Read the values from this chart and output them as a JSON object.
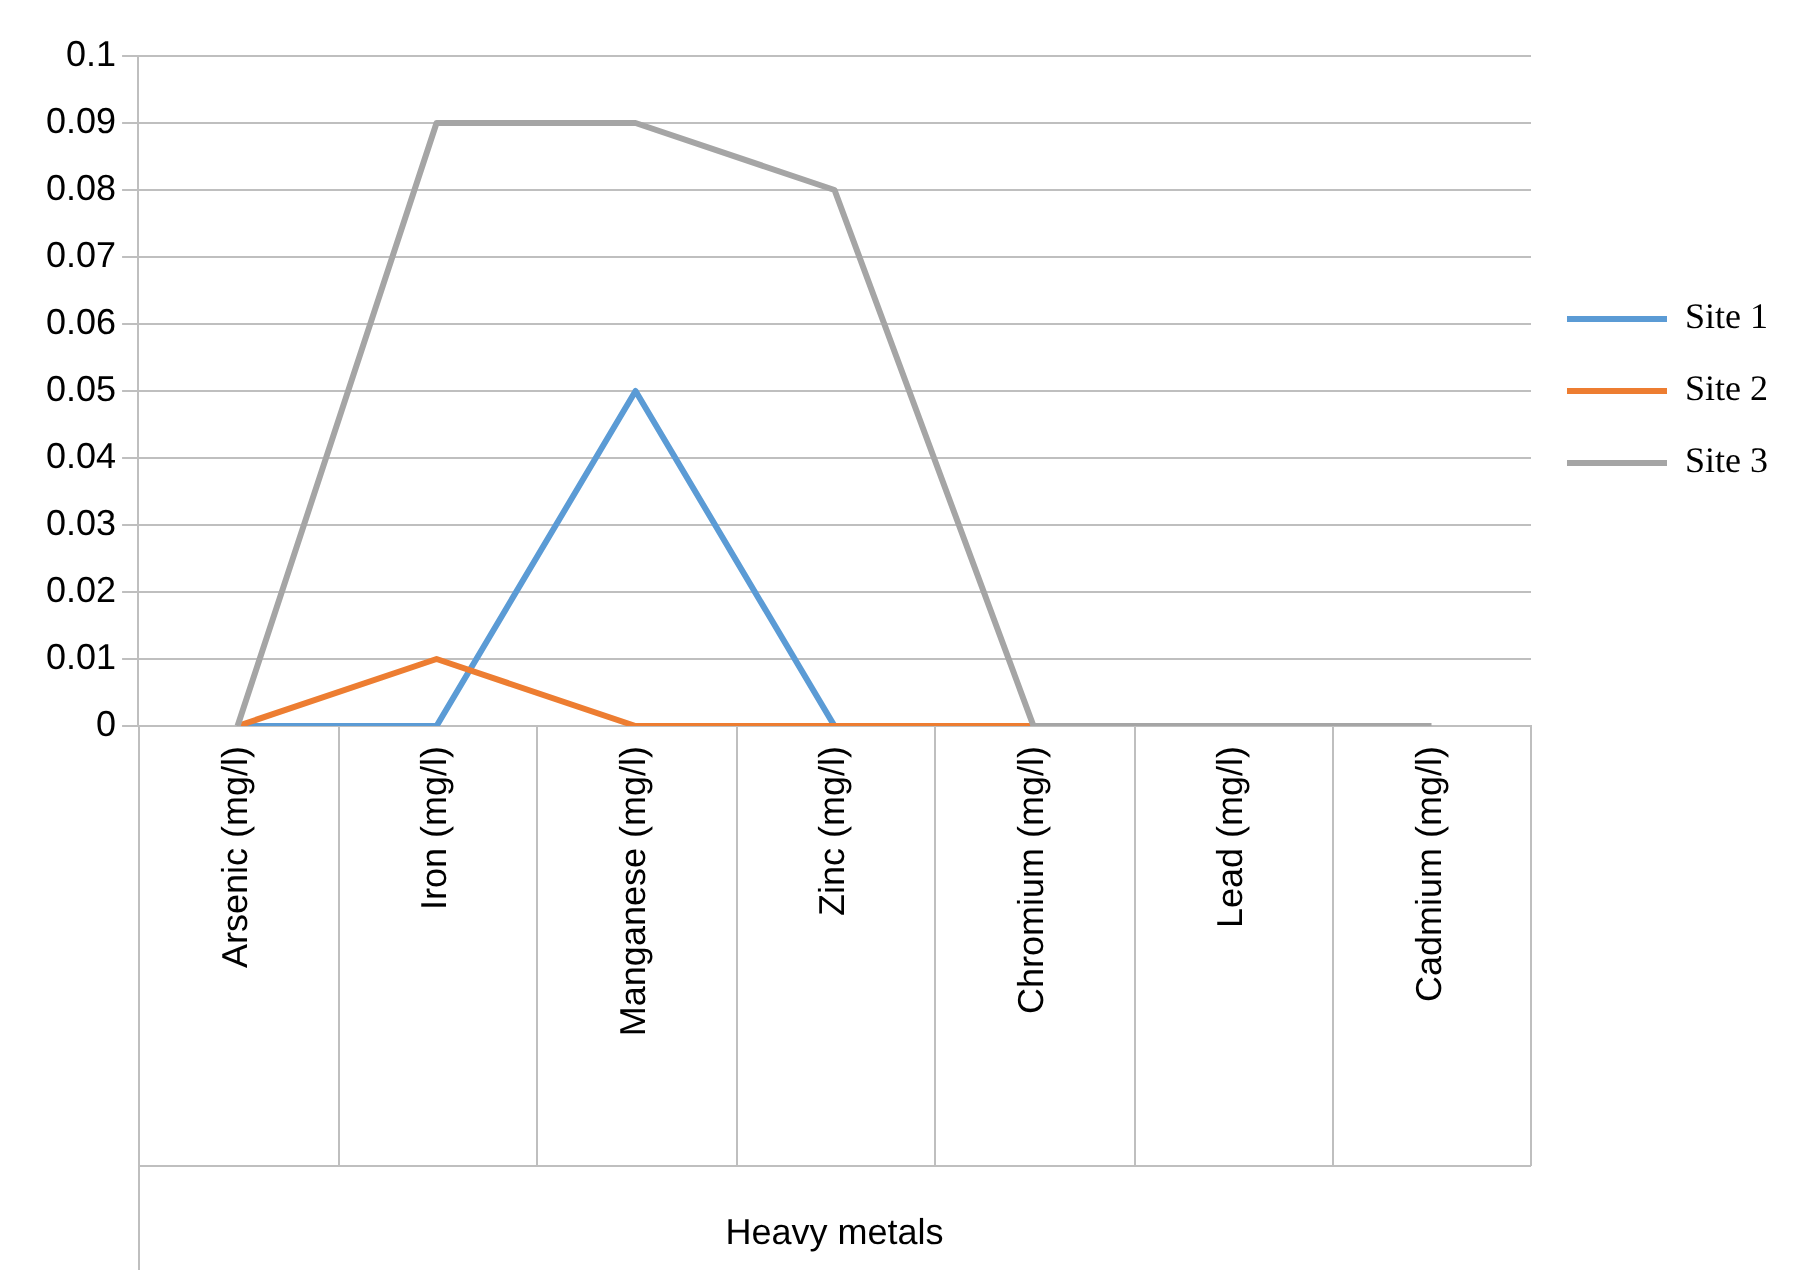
{
  "chart_data": {
    "type": "line",
    "xlabel": "Heavy metals",
    "categories": [
      "Arsenic (mg/l)",
      "Iron (mg/l)",
      "Manganese (mg/l)",
      "Zinc (mg/l)",
      "Chromium (mg/l)",
      "Lead (mg/l)",
      "Cadmium (mg/l)"
    ],
    "series": [
      {
        "name": "Site 1",
        "color": "#5b9bd5",
        "values": [
          0,
          0,
          0.05,
          0,
          null,
          null,
          null
        ]
      },
      {
        "name": "Site 2",
        "color": "#ed7d31",
        "values": [
          0,
          0.01,
          0,
          0,
          0,
          null,
          null
        ]
      },
      {
        "name": "Site 3",
        "color": "#a5a5a5",
        "values": [
          0,
          0.09,
          0.09,
          0.08,
          0,
          0,
          0
        ]
      }
    ],
    "ylim": [
      0,
      0.1
    ],
    "yticks": [
      0,
      0.01,
      0.02,
      0.03,
      0.04,
      0.05,
      0.06,
      0.07,
      0.08,
      0.09,
      0.1
    ],
    "grid": "y",
    "legend": "right",
    "marker": "none",
    "line_style": "solid"
  }
}
